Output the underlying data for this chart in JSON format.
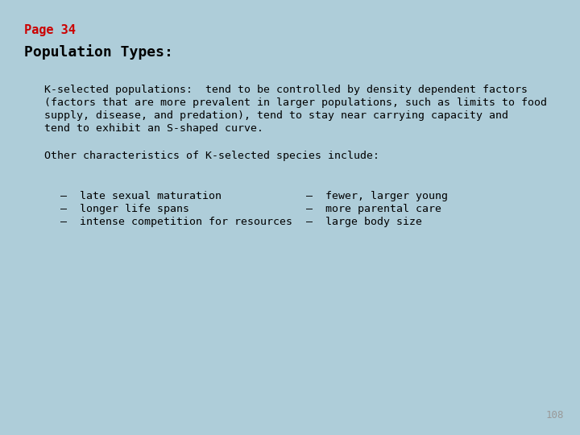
{
  "background_color": "#aecdd9",
  "page_label": "Page 34",
  "page_label_color": "#cc0000",
  "page_label_fontsize": 11,
  "title": "Population Types:",
  "title_fontsize": 13,
  "title_color": "#000000",
  "body_lines": [
    "K-selected populations:  tend to be controlled by density dependent factors",
    "(factors that are more prevalent in larger populations, such as limits to food",
    "supply, disease, and predation), tend to stay near carrying capacity and",
    "tend to exhibit an S-shaped curve."
  ],
  "other_line": "Other characteristics of K-selected species include:",
  "bullet_left": [
    "–  late sexual maturation",
    "–  longer life spans",
    "–  intense competition for resources"
  ],
  "bullet_right": [
    "–  fewer, larger young",
    "–  more parental care",
    "–  large body size"
  ],
  "body_fontsize": 9.5,
  "bullet_fontsize": 9.5,
  "page_number": "108",
  "page_number_color": "#999999",
  "page_number_fontsize": 9,
  "font_family": "monospace"
}
